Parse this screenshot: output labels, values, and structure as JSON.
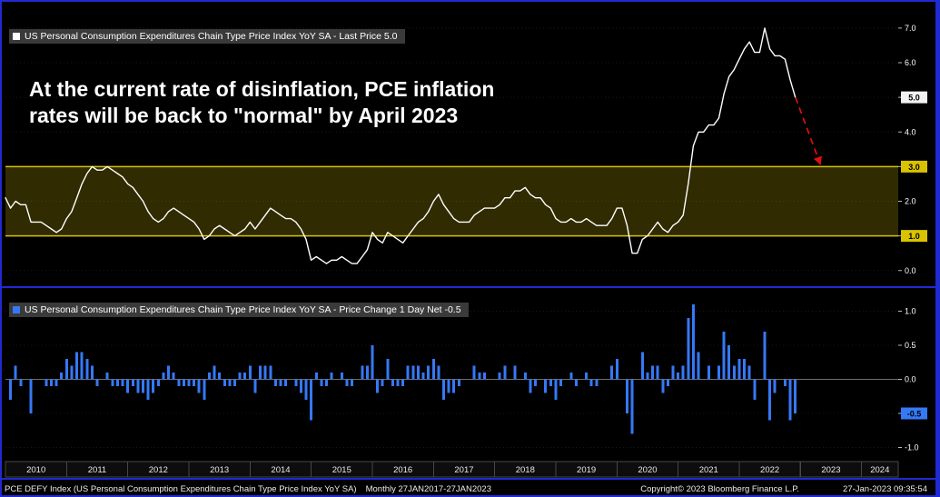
{
  "colors": {
    "background": "#000000",
    "frame_blue": "#1f2ad2",
    "legend_strip_bg": "#3a3a3a",
    "axis_text": "#ffffff"
  },
  "annotation": {
    "line1": "At the current rate of disinflation, PCE inflation",
    "line2": "rates will be back to \"normal\" by April 2023"
  },
  "footer": {
    "instrument": "PCE DEFY Index (US Personal Consumption Expenditures Chain Type Price Index YoY SA)",
    "periodicity": "Monthly 27JAN2017-27JAN2023",
    "copyright": "Copyright© 2023 Bloomberg Finance L.P.",
    "timestamp": "27-Jan-2023 09:35:54"
  },
  "chart_data": [
    {
      "type": "line",
      "series_name": "US Personal Consumption Expenditures Chain Type Price Index YoY SA",
      "legend": "US Personal Consumption Expenditures Chain Type Price Index YoY SA - Last Price 5.0",
      "last_price": 5.0,
      "line_color": "#ffffff",
      "x_start": "2010-01",
      "x_frequency": "monthly",
      "xlim": [
        2010,
        2024.6
      ],
      "x_axis_years": [
        2010,
        2011,
        2012,
        2013,
        2014,
        2015,
        2016,
        2017,
        2018,
        2019,
        2020,
        2021,
        2022,
        2023,
        2024
      ],
      "ylim": [
        -0.4,
        7.6
      ],
      "yticks": [
        7.0,
        6.0,
        5.0,
        4.0,
        3.0,
        2.0,
        1.0,
        0.0
      ],
      "band": {
        "high": 3.0,
        "low": 1.0,
        "line_color": "#d9c300",
        "fill": "rgba(217,195,0,0.22)"
      },
      "projection_arrow": {
        "from": [
          2022.92,
          5.0
        ],
        "to": [
          2023.33,
          3.05
        ],
        "color": "#e01010",
        "style": "dashed"
      },
      "values": [
        2.1,
        1.8,
        2.0,
        1.9,
        1.9,
        1.4,
        1.4,
        1.4,
        1.3,
        1.2,
        1.1,
        1.2,
        1.5,
        1.7,
        2.1,
        2.5,
        2.8,
        3.0,
        2.9,
        2.9,
        3.0,
        2.9,
        2.8,
        2.7,
        2.5,
        2.4,
        2.2,
        2.0,
        1.7,
        1.5,
        1.4,
        1.5,
        1.7,
        1.8,
        1.7,
        1.6,
        1.5,
        1.4,
        1.2,
        0.9,
        1.0,
        1.2,
        1.3,
        1.2,
        1.1,
        1.0,
        1.1,
        1.2,
        1.4,
        1.2,
        1.4,
        1.6,
        1.8,
        1.7,
        1.6,
        1.5,
        1.5,
        1.4,
        1.2,
        0.9,
        0.3,
        0.4,
        0.3,
        0.2,
        0.3,
        0.3,
        0.4,
        0.3,
        0.2,
        0.2,
        0.4,
        0.6,
        1.1,
        0.9,
        0.8,
        1.1,
        1.0,
        0.9,
        0.8,
        1.0,
        1.2,
        1.4,
        1.5,
        1.7,
        2.0,
        2.2,
        1.9,
        1.7,
        1.5,
        1.4,
        1.4,
        1.4,
        1.6,
        1.7,
        1.8,
        1.8,
        1.8,
        1.9,
        2.1,
        2.1,
        2.3,
        2.3,
        2.4,
        2.2,
        2.1,
        2.1,
        1.9,
        1.8,
        1.5,
        1.4,
        1.4,
        1.5,
        1.4,
        1.4,
        1.5,
        1.4,
        1.3,
        1.3,
        1.3,
        1.5,
        1.8,
        1.8,
        1.3,
        0.5,
        0.5,
        0.9,
        1.0,
        1.2,
        1.4,
        1.2,
        1.1,
        1.3,
        1.4,
        1.6,
        2.5,
        3.6,
        4.0,
        4.0,
        4.2,
        4.2,
        4.4,
        5.1,
        5.6,
        5.8,
        6.1,
        6.4,
        6.6,
        6.3,
        6.3,
        7.0,
        6.4,
        6.2,
        6.2,
        6.1,
        5.5,
        5.0
      ]
    },
    {
      "type": "bar",
      "series_name": "US Personal Consumption Expenditures Chain Type Price Index YoY SA",
      "legend": "US Personal Consumption Expenditures Chain Type Price Index YoY SA - Price Change 1 Day Net -0.5",
      "last_change": -0.5,
      "bar_color": "#3579f6",
      "x_start": "2010-02",
      "x_frequency": "monthly",
      "ylim": [
        -1.18,
        1.3
      ],
      "yticks": [
        1.0,
        0.5,
        0.0,
        -0.5,
        -1.0
      ],
      "values": [
        -0.3,
        0.2,
        -0.1,
        0,
        -0.5,
        0,
        0,
        -0.1,
        -0.1,
        -0.1,
        0.1,
        0.3,
        0.2,
        0.4,
        0.4,
        0.3,
        0.2,
        -0.1,
        0,
        0.1,
        -0.1,
        -0.1,
        -0.1,
        -0.2,
        -0.1,
        -0.2,
        -0.2,
        -0.3,
        -0.2,
        -0.1,
        0.1,
        0.2,
        0.1,
        -0.1,
        -0.1,
        -0.1,
        -0.1,
        -0.2,
        -0.3,
        0.1,
        0.2,
        0.1,
        -0.1,
        -0.1,
        -0.1,
        0.1,
        0.1,
        0.2,
        -0.2,
        0.2,
        0.2,
        0.2,
        -0.1,
        -0.1,
        -0.1,
        0,
        -0.1,
        -0.2,
        -0.3,
        -0.6,
        0.1,
        -0.1,
        -0.1,
        0.1,
        0,
        0.1,
        -0.1,
        -0.1,
        0,
        0.2,
        0.2,
        0.5,
        -0.2,
        -0.1,
        0.3,
        -0.1,
        -0.1,
        -0.1,
        0.2,
        0.2,
        0.2,
        0.1,
        0.2,
        0.3,
        0.2,
        -0.3,
        -0.2,
        -0.2,
        -0.1,
        0,
        0,
        0.2,
        0.1,
        0.1,
        0,
        0,
        0.1,
        0.2,
        0,
        0.2,
        0,
        0.1,
        -0.2,
        -0.1,
        0,
        -0.2,
        -0.1,
        -0.3,
        -0.1,
        0,
        0.1,
        -0.1,
        0,
        0.1,
        -0.1,
        -0.1,
        0,
        0,
        0.2,
        0.3,
        0,
        -0.5,
        -0.8,
        0,
        0.4,
        0.1,
        0.2,
        0.2,
        -0.2,
        -0.1,
        0.2,
        0.1,
        0.2,
        0.9,
        1.1,
        0.4,
        0,
        0.2,
        0,
        0.2,
        0.7,
        0.5,
        0.2,
        0.3,
        0.3,
        0.2,
        -0.3,
        0,
        0.7,
        -0.6,
        -0.2,
        0,
        -0.1,
        -0.6,
        -0.5
      ]
    }
  ]
}
